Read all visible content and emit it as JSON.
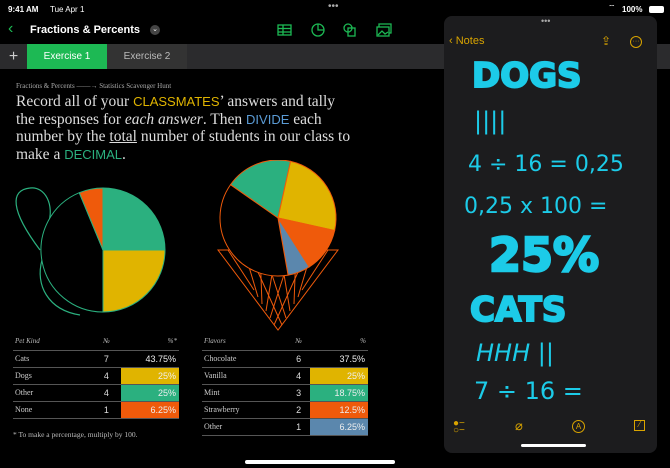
{
  "status": {
    "time": "9:41 AM",
    "date": "Tue Apr 1",
    "battery": "100%"
  },
  "toolbar": {
    "title": "Fractions & Percents",
    "icons": [
      "table-icon",
      "chart-icon",
      "shape-icon",
      "media-icon"
    ]
  },
  "tabs": [
    {
      "label": "Exercise 1",
      "active": true
    },
    {
      "label": "Exercise 2",
      "active": false
    }
  ],
  "doc": {
    "breadcrumb_from": "Fractions & Percents",
    "breadcrumb_to": "Statistics Scavenger Hunt",
    "t1": "Record all of your ",
    "k1": "CLASSMATES",
    "t2": "’ answers and tally the responses for ",
    "t2i": "each answer",
    "t3": ". Then ",
    "k2": "DIVIDE",
    "t4": " each number by the ",
    "t4u": "total",
    "t5": " number of students in our class to make a ",
    "k3": "DECIMAL",
    "t6": ".",
    "footnote": "* To make a percentage, multiply by 100."
  },
  "colors": {
    "green": "#2bb07f",
    "yellow": "#e0b400",
    "orange": "#ef5a0b",
    "blue": "#5b87ad",
    "accent": "#1db954",
    "notes_accent": "#d9a400",
    "ink": "#1ccbe8"
  },
  "chart_data": [
    {
      "type": "pie",
      "headers": [
        "Pet Kind",
        "№",
        "%*"
      ],
      "rows": [
        [
          "Cats",
          7,
          "43.75%"
        ],
        [
          "Dogs",
          4,
          "25%"
        ],
        [
          "Other",
          4,
          "25%"
        ],
        [
          "None",
          1,
          "6.25%"
        ]
      ],
      "values": [
        43.75,
        25,
        25,
        6.25
      ]
    },
    {
      "type": "pie",
      "headers": [
        "Flavors",
        "№",
        "%"
      ],
      "rows": [
        [
          "Chocolate",
          6,
          "37.5%"
        ],
        [
          "Vanilla",
          4,
          "25%"
        ],
        [
          "Mint",
          3,
          "18.75%"
        ],
        [
          "Strawberry",
          2,
          "12.5%"
        ],
        [
          "Other",
          1,
          "6.25%"
        ]
      ],
      "values": [
        37.5,
        25,
        18.75,
        12.5,
        6.25
      ]
    }
  ],
  "notes": {
    "back": "Notes",
    "lines": [
      "DOGS",
      "||||",
      "4 ÷ 16 = 0,25",
      "0,25 x 100 =",
      "25%",
      "CATS",
      "HHH ||",
      "7 ÷ 16 ="
    ]
  }
}
